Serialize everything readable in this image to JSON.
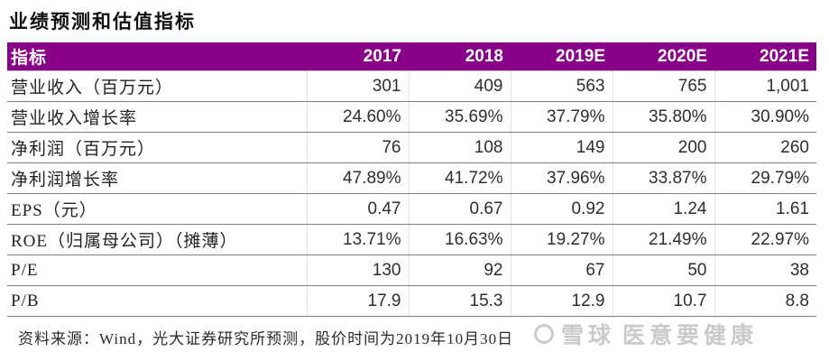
{
  "title": "业绩预测和估值指标",
  "table": {
    "header": {
      "label": "指标",
      "years": [
        "2017",
        "2018",
        "2019E",
        "2020E",
        "2021E"
      ]
    },
    "rows": [
      {
        "label": "营业收入（百万元）",
        "values": [
          "301",
          "409",
          "563",
          "765",
          "1,001"
        ]
      },
      {
        "label": "营业收入增长率",
        "values": [
          "24.60%",
          "35.69%",
          "37.79%",
          "35.80%",
          "30.90%"
        ]
      },
      {
        "label": "净利润（百万元）",
        "values": [
          "76",
          "108",
          "149",
          "200",
          "260"
        ]
      },
      {
        "label": "净利润增长率",
        "values": [
          "47.89%",
          "41.72%",
          "37.96%",
          "33.87%",
          "29.79%"
        ]
      },
      {
        "label": "EPS（元）",
        "values": [
          "0.47",
          "0.67",
          "0.92",
          "1.24",
          "1.61"
        ]
      },
      {
        "label": "ROE（归属母公司）（摊薄）",
        "values": [
          "13.71%",
          "16.63%",
          "19.27%",
          "21.49%",
          "22.97%"
        ]
      },
      {
        "label": "P/E",
        "values": [
          "130",
          "92",
          "67",
          "50",
          "38"
        ]
      },
      {
        "label": "P/B",
        "values": [
          "17.9",
          "15.3",
          "12.9",
          "10.7",
          "8.8"
        ]
      }
    ]
  },
  "footer": {
    "source_text": "资料来源：Wind，光大证券研究所预测，股价时间为2019年10月30日"
  },
  "watermark": {
    "brand": "雪球",
    "user": "医意要健康",
    "logo": "snowball-circle-icon"
  },
  "colors": {
    "header_bg": "#870287",
    "header_text": "#ffffff",
    "row_border": "#7e7e7e",
    "watermark": "#cacaca"
  }
}
